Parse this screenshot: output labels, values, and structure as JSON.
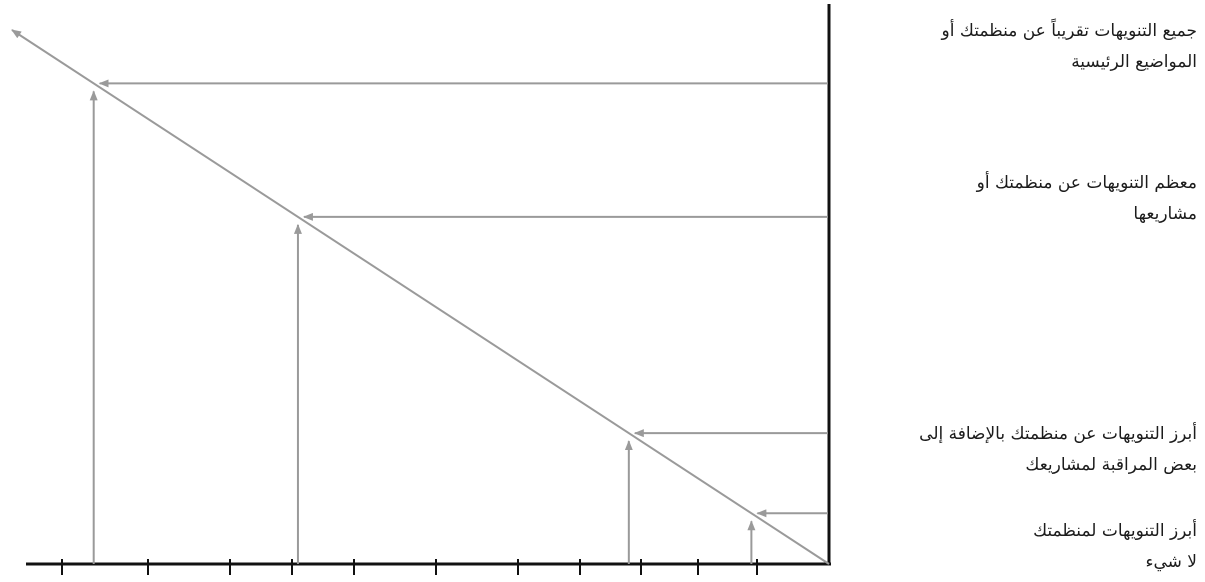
{
  "title": "",
  "colors": {
    "axis": "#111111",
    "line": "#9a9a9a",
    "text": "#1c1c1c"
  },
  "labels": [
    {
      "line1": "جميع التنويهات تقريباً عن منظمتك أو",
      "line2": "المواضيع الرئيسية"
    },
    {
      "line1": "معظم التنويهات عن منظمتك أو",
      "line2": "مشاريعها"
    },
    {
      "line1": "أبرز التنويهات عن منظمتك بالإضافة إلى",
      "line2": "بعض المراقبة لمشاريعك"
    },
    {
      "line1": "أبرز التنويهات لمنظمتك"
    },
    {
      "line1": "لا شيء"
    }
  ],
  "levels": [
    {
      "label_index": 0,
      "fraction": 0.9
    },
    {
      "label_index": 1,
      "fraction": 0.65
    },
    {
      "label_index": 2,
      "fraction": 0.245
    },
    {
      "label_index": 3,
      "fraction": 0.095
    }
  ],
  "tick_count": 10
}
